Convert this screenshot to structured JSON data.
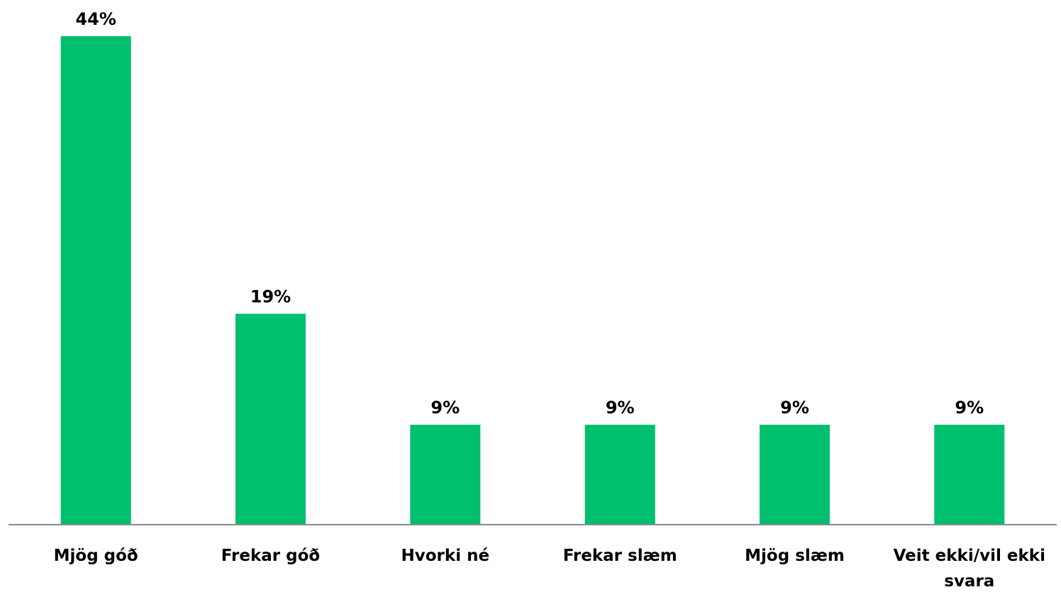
{
  "chart_data": {
    "type": "bar",
    "title": "",
    "xlabel": "",
    "ylabel": "",
    "categories": [
      "Mjög góð",
      "Frekar góð",
      "Hvorki né",
      "Frekar slæm",
      "Mjög slæm",
      "Veit ekki/vil ekki svara"
    ],
    "values": [
      44,
      19,
      9,
      9,
      9,
      9
    ],
    "data_labels": [
      "44%",
      "19%",
      "9%",
      "9%",
      "9%",
      "9%"
    ],
    "unit": "%",
    "ylim": [
      0,
      44
    ],
    "grid": false,
    "legend": "none",
    "bar_color": "#00BF6F",
    "axis_color": "#898989"
  }
}
